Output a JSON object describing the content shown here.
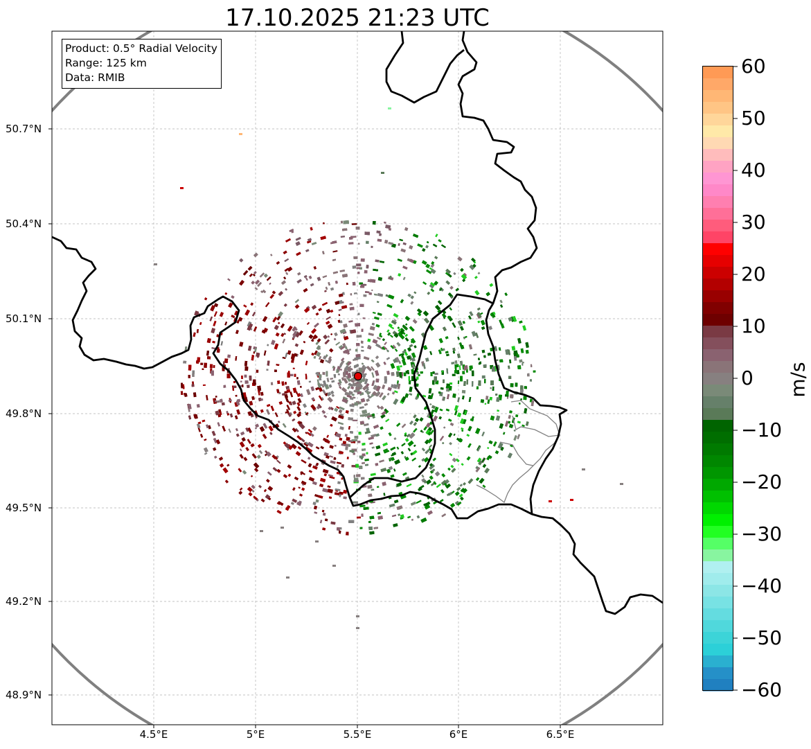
{
  "title": "17.10.2025 21:23 UTC",
  "info": {
    "product": "Product: 0.5° Radial Velocity",
    "range": "Range: 125 km",
    "data": "Data: RMIB"
  },
  "y_ticks": [
    "50.7°N",
    "50.4°N",
    "50.1°N",
    "49.8°N",
    "49.5°N",
    "49.2°N",
    "48.9°N"
  ],
  "x_ticks": [
    "4.5°E",
    "5°E",
    "5.5°E",
    "6°E",
    "6.5°E"
  ],
  "colorbar": {
    "unit": "m/s",
    "ticks": [
      "60",
      "50",
      "40",
      "30",
      "20",
      "10",
      "0",
      "−10",
      "−20",
      "−30",
      "−40",
      "−50",
      "−60"
    ]
  },
  "colors": {
    "range_ring": "#808080",
    "border": "#000000",
    "radar_site": "#e00000"
  }
}
